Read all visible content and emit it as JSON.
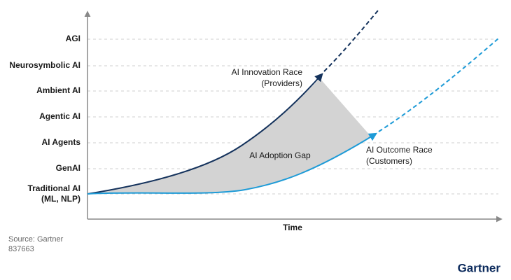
{
  "levels": [
    "AGI",
    "Neurosymbolic AI",
    "Ambient AI",
    "Agentic AI",
    "AI Agents",
    "GenAI"
  ],
  "baseline_level": [
    "Traditional AI",
    "(ML, NLP)"
  ],
  "x_axis_label": "Time",
  "innovation_race": [
    "AI Innovation Race",
    "(Providers)"
  ],
  "adoption_gap": "AI Adoption Gap",
  "outcome_race": [
    "AI Outcome Race",
    "(Customers)"
  ],
  "source": "Source: Gartner",
  "id": "837663",
  "logo": "Gartner"
}
